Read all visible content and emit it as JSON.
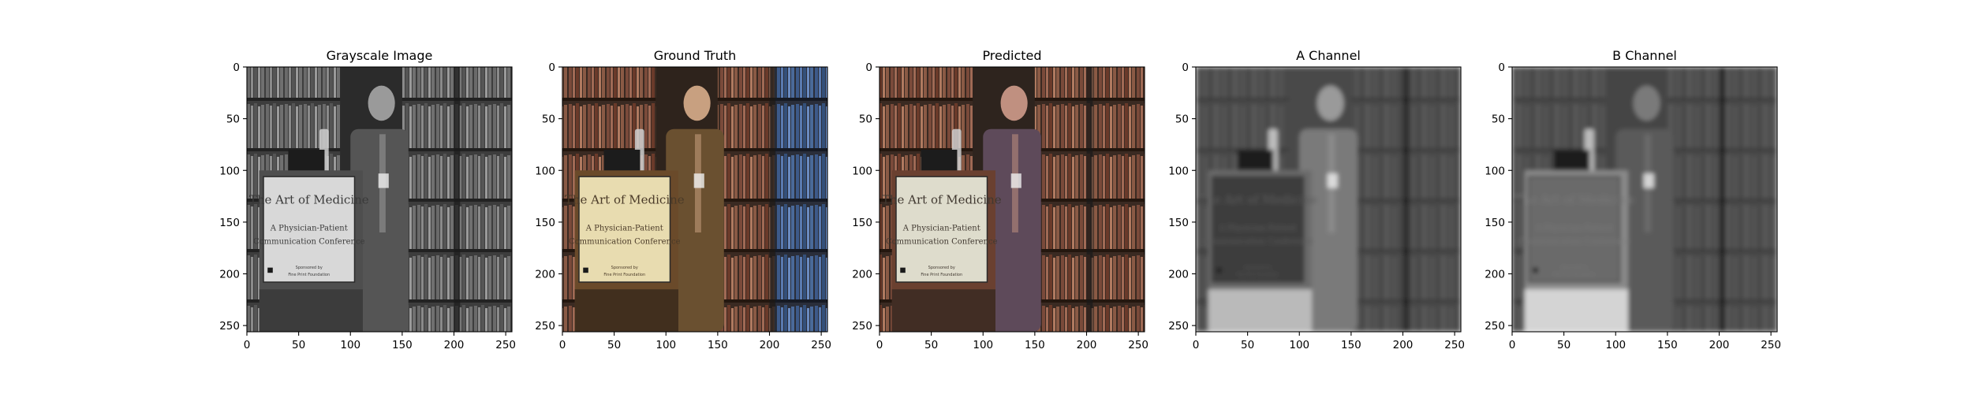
{
  "figure": {
    "panels": [
      {
        "title": "Grayscale Image",
        "kind": "gray"
      },
      {
        "title": "Ground Truth",
        "kind": "truth"
      },
      {
        "title": "Predicted",
        "kind": "pred"
      },
      {
        "title": "A Channel",
        "kind": "chanA"
      },
      {
        "title": "B Channel",
        "kind": "chanB"
      }
    ]
  },
  "chart_data": {
    "type": "image-grid",
    "panels": [
      "Grayscale Image",
      "Ground Truth",
      "Predicted",
      "A Channel",
      "B Channel"
    ],
    "x_ticks": [
      0,
      50,
      100,
      150,
      200,
      250
    ],
    "y_ticks": [
      0,
      50,
      100,
      150,
      200,
      250
    ],
    "xlim": [
      0,
      256
    ],
    "ylim": [
      256,
      0
    ],
    "image_size": [
      256,
      256
    ],
    "sign_text": {
      "heading": "The Art of Medicine",
      "subtitle_line1": "A Physician-Patient",
      "subtitle_line2": "Communication Conference",
      "footer_line1": "Sponsored by",
      "footer_line2": "Fine Print Foundation"
    }
  }
}
